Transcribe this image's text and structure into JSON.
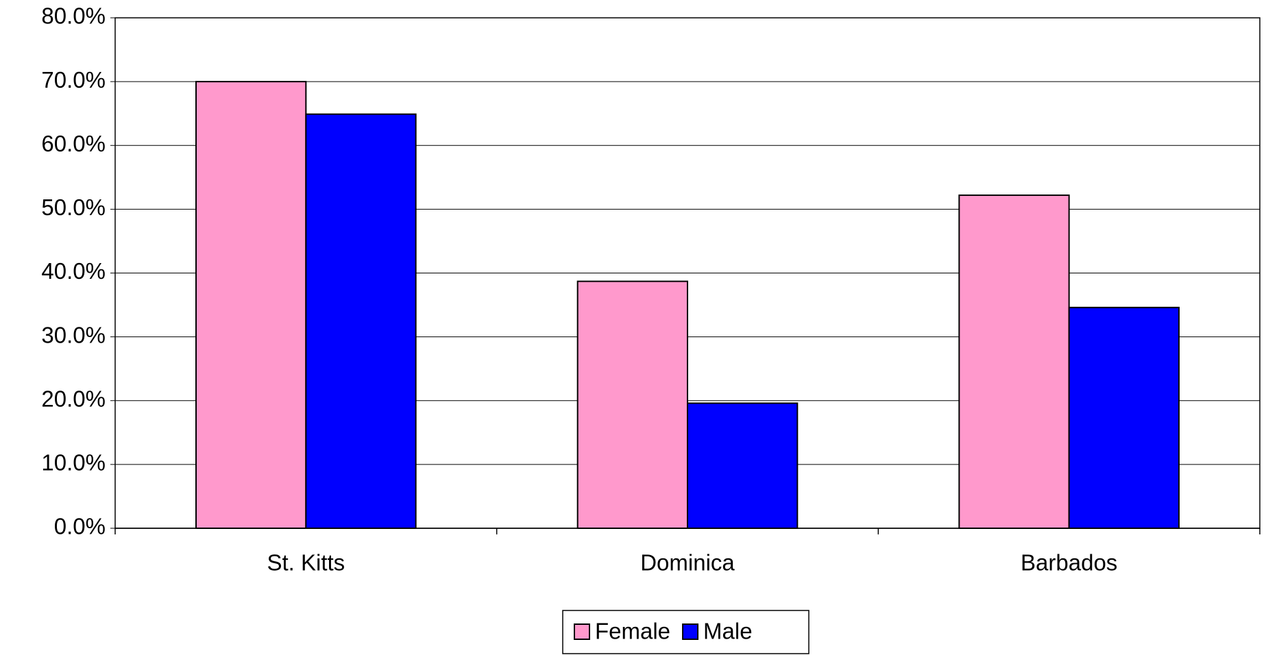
{
  "chart_data": {
    "type": "bar",
    "categories": [
      "St. Kitts",
      "Dominica",
      "Barbados"
    ],
    "series": [
      {
        "name": "Female",
        "color": "#ff99cc",
        "values": [
          70.0,
          38.7,
          52.2
        ]
      },
      {
        "name": "Male",
        "color": "#0000ff",
        "values": [
          64.9,
          19.6,
          34.6
        ]
      }
    ],
    "ylim": [
      0,
      80
    ],
    "yticks": [
      {
        "value": 0,
        "label": "0.0%"
      },
      {
        "value": 10,
        "label": "10.0%"
      },
      {
        "value": 20,
        "label": "20.0%"
      },
      {
        "value": 30,
        "label": "30.0%"
      },
      {
        "value": 40,
        "label": "40.0%"
      },
      {
        "value": 50,
        "label": "50.0%"
      },
      {
        "value": 60,
        "label": "60.0%"
      },
      {
        "value": 70,
        "label": "70.0%"
      },
      {
        "value": 80,
        "label": "80.0%"
      }
    ],
    "grid": true,
    "legend": "bottom"
  }
}
